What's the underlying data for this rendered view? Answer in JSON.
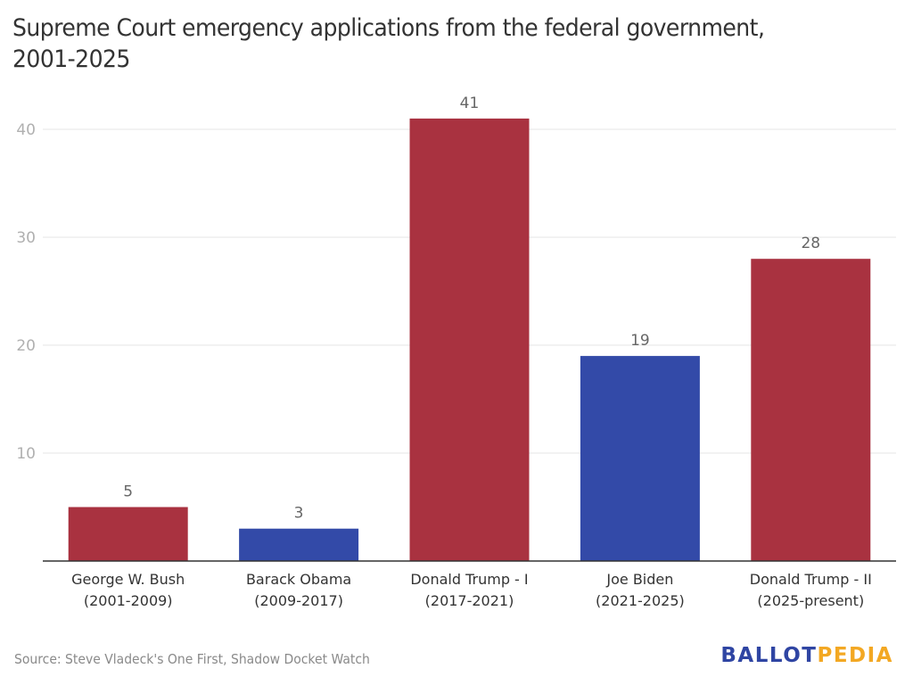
{
  "chart_data": {
    "type": "bar",
    "title": "Supreme Court emergency applications from the federal government, 2001-2025",
    "title_lines": [
      "Supreme Court emergency applications from the federal government,",
      "2001-2025"
    ],
    "xlabel": "",
    "ylabel": "",
    "ylim": [
      0,
      45
    ],
    "yticks": [
      10,
      20,
      30,
      40
    ],
    "grid": true,
    "legend": "none",
    "categories": [
      {
        "line1": "George W. Bush",
        "line2": "(2001-2009)"
      },
      {
        "line1": "Barack Obama",
        "line2": "(2009-2017)"
      },
      {
        "line1": "Donald Trump - I",
        "line2": "(2017-2021)"
      },
      {
        "line1": "Joe Biden",
        "line2": "(2021-2025)"
      },
      {
        "line1": "Donald Trump - II",
        "line2": "(2025-present)"
      }
    ],
    "values": [
      5,
      3,
      41,
      19,
      28
    ],
    "bar_party": [
      "republican",
      "democrat",
      "republican",
      "democrat",
      "republican"
    ],
    "colors": {
      "republican": "#a93240",
      "democrat": "#334aa8",
      "grid": "#e6e6e6",
      "axis": "#333333"
    }
  },
  "footer": {
    "source": "Source: Steve Vladeck's One First, Shadow Docket Watch",
    "logo_part1": "BALLOT",
    "logo_part2": "PEDIA"
  }
}
